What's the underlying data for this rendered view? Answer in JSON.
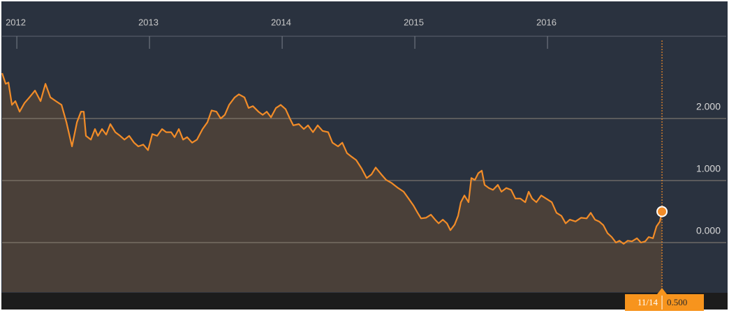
{
  "chart_data": {
    "type": "area",
    "x": [
      2011.889,
      2011.916,
      2011.937,
      2011.963,
      2011.989,
      2012.021,
      2012.058,
      2012.095,
      2012.137,
      2012.179,
      2012.216,
      2012.253,
      2012.295,
      2012.337,
      2012.374,
      2012.416,
      2012.453,
      2012.484,
      2012.505,
      2012.521,
      2012.558,
      2012.589,
      2012.611,
      2012.642,
      2012.674,
      2012.705,
      2012.742,
      2012.779,
      2012.811,
      2012.847,
      2012.884,
      2012.916,
      2012.953,
      2012.989,
      2013.021,
      2013.058,
      2013.095,
      2013.126,
      2013.163,
      2013.189,
      2013.221,
      2013.253,
      2013.284,
      2013.321,
      2013.358,
      2013.4,
      2013.437,
      2013.468,
      2013.505,
      2013.537,
      2013.568,
      2013.6,
      2013.642,
      2013.674,
      2013.716,
      2013.747,
      2013.779,
      2013.821,
      2013.853,
      2013.884,
      2013.916,
      2013.953,
      2013.989,
      2014.026,
      2014.058,
      2014.084,
      2014.126,
      2014.163,
      2014.195,
      2014.232,
      2014.268,
      2014.305,
      2014.347,
      2014.379,
      2014.421,
      2014.453,
      2014.489,
      2014.526,
      2014.558,
      2014.6,
      2014.637,
      2014.674,
      2014.705,
      2014.747,
      2014.784,
      2014.826,
      2014.874,
      2014.916,
      2014.953,
      2014.989,
      2015.021,
      2015.047,
      2015.084,
      2015.121,
      2015.153,
      2015.179,
      2015.211,
      2015.242,
      2015.268,
      2015.3,
      2015.326,
      2015.347,
      2015.374,
      2015.405,
      2015.426,
      2015.453,
      2015.479,
      2015.505,
      2015.526,
      2015.558,
      2015.589,
      2015.626,
      2015.653,
      2015.689,
      2015.726,
      2015.758,
      2015.795,
      2015.832,
      2015.858,
      2015.884,
      2015.916,
      2015.953,
      2015.989,
      2016.032,
      2016.068,
      2016.105,
      2016.137,
      2016.168,
      2016.211,
      2016.253,
      2016.295,
      2016.326,
      2016.358,
      2016.389,
      2016.421,
      2016.453,
      2016.484,
      2016.516,
      2016.542,
      2016.574,
      2016.605,
      2016.637,
      2016.674,
      2016.705,
      2016.737,
      2016.763,
      2016.795,
      2016.821,
      2016.847,
      2016.863
    ],
    "values": [
      2.73,
      2.56,
      2.58,
      2.22,
      2.28,
      2.11,
      2.25,
      2.34,
      2.45,
      2.28,
      2.56,
      2.34,
      2.28,
      2.22,
      1.94,
      1.55,
      1.94,
      2.11,
      2.11,
      1.72,
      1.66,
      1.83,
      1.72,
      1.83,
      1.74,
      1.91,
      1.78,
      1.72,
      1.66,
      1.72,
      1.61,
      1.55,
      1.58,
      1.49,
      1.75,
      1.72,
      1.83,
      1.78,
      1.78,
      1.7,
      1.83,
      1.66,
      1.7,
      1.61,
      1.66,
      1.83,
      1.94,
      2.13,
      2.11,
      2.0,
      2.06,
      2.22,
      2.34,
      2.39,
      2.34,
      2.17,
      2.2,
      2.11,
      2.06,
      2.11,
      2.02,
      2.17,
      2.22,
      2.15,
      2.0,
      1.89,
      1.91,
      1.83,
      1.89,
      1.78,
      1.89,
      1.8,
      1.78,
      1.61,
      1.55,
      1.61,
      1.44,
      1.38,
      1.33,
      1.19,
      1.04,
      1.1,
      1.21,
      1.1,
      1.01,
      0.96,
      0.88,
      0.82,
      0.71,
      0.6,
      0.48,
      0.39,
      0.4,
      0.45,
      0.37,
      0.31,
      0.37,
      0.31,
      0.2,
      0.29,
      0.43,
      0.65,
      0.76,
      0.65,
      1.04,
      1.01,
      1.12,
      1.16,
      0.93,
      0.88,
      0.85,
      0.93,
      0.82,
      0.88,
      0.85,
      0.71,
      0.71,
      0.65,
      0.82,
      0.71,
      0.65,
      0.76,
      0.71,
      0.65,
      0.48,
      0.43,
      0.31,
      0.37,
      0.34,
      0.4,
      0.39,
      0.48,
      0.37,
      0.34,
      0.28,
      0.15,
      0.09,
      0.0,
      0.03,
      -0.02,
      0.03,
      0.02,
      0.07,
      0.0,
      0.02,
      0.09,
      0.07,
      0.26,
      0.34,
      0.5
    ],
    "color": "#f28c28",
    "xlim": [
      2011.889,
      2017.347
    ],
    "xticks": [
      2012,
      2013,
      2014,
      2015,
      2016
    ],
    "ylim": [
      -0.8,
      3.1
    ],
    "yticks": [
      {
        "value": 0,
        "label": "0.000"
      },
      {
        "value": 1,
        "label": "1.000"
      },
      {
        "value": 2,
        "label": "2.000"
      }
    ],
    "grid": true,
    "annotation": {
      "date": "11/14",
      "value_label": "0.500"
    }
  }
}
